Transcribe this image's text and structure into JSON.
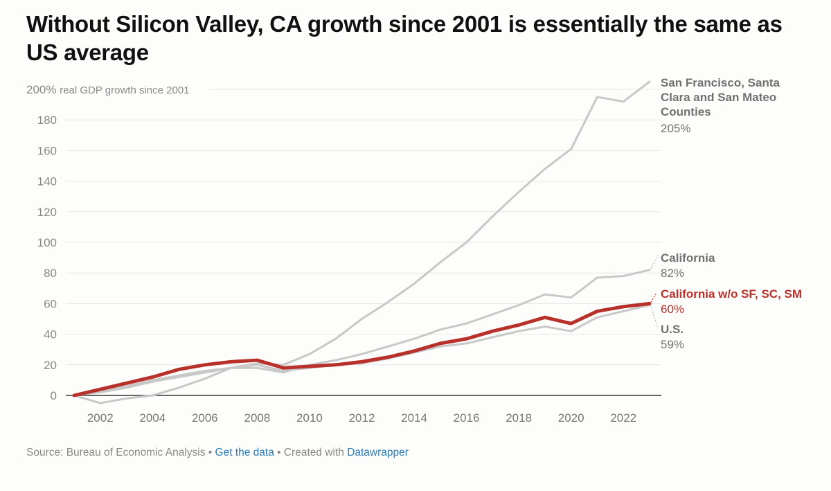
{
  "chart_data": {
    "type": "line",
    "title": "Without Silicon Valley, CA growth since 2001 is essentially the same as US average",
    "ylabel": "real GDP growth since 2001",
    "y_top_label": "200%",
    "xlabel": "",
    "ylim": [
      0,
      200
    ],
    "xlim": [
      2001,
      2023
    ],
    "yticks": [
      0,
      20,
      40,
      60,
      80,
      100,
      120,
      140,
      160,
      180,
      200
    ],
    "xticks": [
      2002,
      2004,
      2006,
      2008,
      2010,
      2012,
      2014,
      2016,
      2018,
      2020,
      2022
    ],
    "grid": true,
    "x": [
      2001,
      2002,
      2003,
      2004,
      2005,
      2006,
      2007,
      2008,
      2009,
      2010,
      2011,
      2012,
      2013,
      2014,
      2015,
      2016,
      2017,
      2018,
      2019,
      2020,
      2021,
      2022,
      2023
    ],
    "series": [
      {
        "name": "San Francisco, Santa Clara and San Mateo Counties",
        "end_label": "205%",
        "color": "#c8c8c8",
        "highlight": false,
        "values": [
          0,
          -5,
          -2,
          0,
          5,
          11,
          18,
          21,
          20,
          27,
          37,
          50,
          61,
          73,
          87,
          100,
          117,
          133,
          148,
          161,
          195,
          192,
          205
        ]
      },
      {
        "name": "California",
        "end_label": "82%",
        "color": "#c8c8c8",
        "highlight": false,
        "values": [
          0,
          3,
          6,
          10,
          13,
          16,
          18,
          18,
          15,
          20,
          23,
          27,
          32,
          37,
          43,
          47,
          53,
          59,
          66,
          64,
          77,
          78,
          82
        ]
      },
      {
        "name": "U.S.",
        "end_label": "59%",
        "color": "#c8c8c8",
        "highlight": false,
        "values": [
          0,
          2,
          5,
          9,
          12,
          15,
          18,
          20,
          16,
          18,
          20,
          21,
          24,
          28,
          32,
          34,
          38,
          42,
          45,
          42,
          51,
          55,
          59
        ]
      },
      {
        "name": "California w/o SF, SC, SM",
        "end_label": "60%",
        "color": "#b8302a",
        "highlight": true,
        "values": [
          0,
          4,
          8,
          12,
          17,
          20,
          22,
          23,
          18,
          19,
          20,
          22,
          25,
          29,
          34,
          37,
          42,
          46,
          51,
          47,
          55,
          58,
          60
        ]
      }
    ],
    "labels": {
      "sf_lines": [
        "San Francisco, Santa",
        "Clara and San Mateo",
        "Counties"
      ],
      "sf_value": "205%",
      "ca_name": "California",
      "ca_value": "82%",
      "cawo_name": "California w/o SF, SC, SM",
      "cawo_value": "60%",
      "us_name": "U.S.",
      "us_value": "59%"
    }
  },
  "footer": {
    "source": "Source: Bureau of Economic Analysis",
    "sep1": " • ",
    "get_data": "Get the data",
    "sep2": " • Created with ",
    "datawrapper": "Datawrapper"
  },
  "colors": {
    "highlight": "#b8302a",
    "muted": "#c8c8c8",
    "label_gray": "#707070"
  }
}
